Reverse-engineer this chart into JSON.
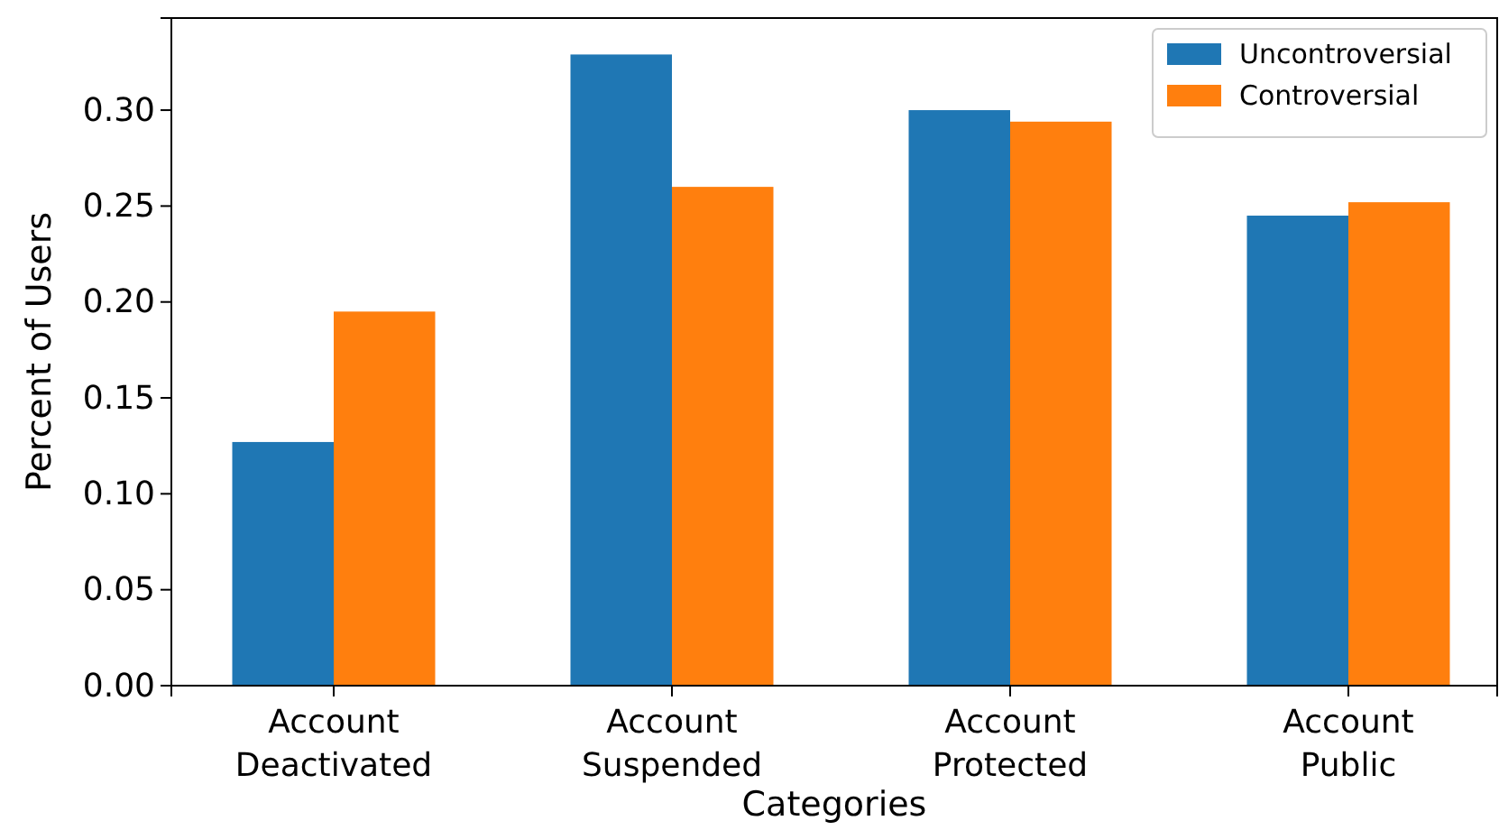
{
  "chart_data": {
    "type": "bar",
    "xlabel": "Categories",
    "ylabel": "Percent of Users",
    "categories": [
      "Account Deactivated",
      "Account Suspended",
      "Account Protected",
      "Account Public"
    ],
    "series": [
      {
        "name": "Uncontroversial",
        "color": "#1f77b4",
        "values": [
          0.127,
          0.329,
          0.3,
          0.245
        ]
      },
      {
        "name": "Controversial",
        "color": "#ff7f0e",
        "values": [
          0.195,
          0.26,
          0.294,
          0.252
        ]
      }
    ],
    "ylim": [
      0,
      0.348
    ],
    "yticks": [
      {
        "value": 0,
        "label": "0.00"
      },
      {
        "value": 0.05,
        "label": "0.05"
      },
      {
        "value": 0.1,
        "label": "0.10"
      },
      {
        "value": 0.15,
        "label": "0.15"
      },
      {
        "value": 0.2,
        "label": "0.20"
      },
      {
        "value": 0.25,
        "label": "0.25"
      },
      {
        "value": 0.3,
        "label": "0.30"
      }
    ],
    "grid": false,
    "legend": "top right"
  }
}
